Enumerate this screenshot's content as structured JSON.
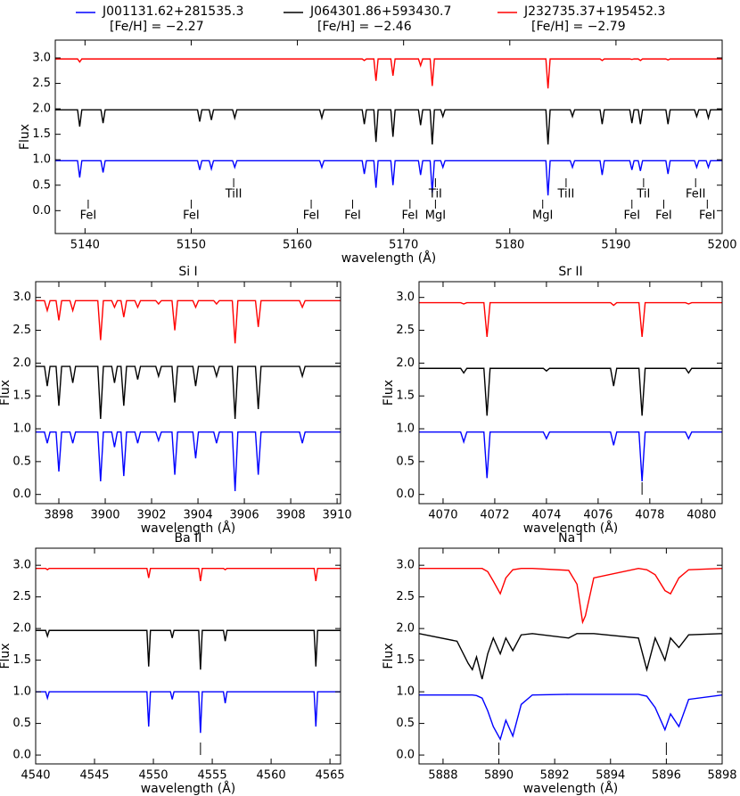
{
  "chart_data": [
    {
      "type": "line",
      "xlabel": "wavelength (Å)",
      "ylabel": "Flux",
      "legend": true,
      "xlim": [
        5137.2,
        5200
      ],
      "ylim": [
        -0.45,
        3.35
      ],
      "xticks": [
        5140,
        5150,
        5160,
        5170,
        5180,
        5190,
        5200
      ],
      "yticks": [
        {
          "value": 0,
          "label": "0.0"
        },
        0.5,
        {
          "value": 1,
          "label": "1.0"
        },
        1.5,
        {
          "value": 2,
          "label": "2.0"
        },
        2.5,
        {
          "value": 3,
          "label": "3.0"
        }
      ],
      "x": [
        5137.2,
        5139.3,
        5139.5,
        5139.7,
        5141.5,
        5141.7,
        5141.9,
        5150.6,
        5150.8,
        5151.0,
        5151.7,
        5151.9,
        5152.1,
        5153.9,
        5154.1,
        5154.3,
        5162.1,
        5162.3,
        5162.5,
        5166.1,
        5166.3,
        5166.5,
        5167.2,
        5167.4,
        5167.6,
        5168.8,
        5169.0,
        5169.2,
        5171.4,
        5171.6,
        5171.8,
        5172.5,
        5172.7,
        5172.9,
        5173.5,
        5173.7,
        5173.9,
        5183.4,
        5183.6,
        5183.8,
        5185.7,
        5185.9,
        5186.1,
        5188.5,
        5188.7,
        5188.9,
        5191.3,
        5191.5,
        5191.7,
        5192.1,
        5192.3,
        5192.5,
        5194.7,
        5194.9,
        5195.1,
        5197.4,
        5197.6,
        5197.8,
        5198.5,
        5198.7,
        5198.9,
        5200
      ],
      "series": [
        {
          "name": "J001131.62+281535.3",
          "feh": "[Fe/H] = −2.27",
          "color": "#0000ff",
          "values": [
            0.98,
            0.98,
            0.65,
            0.98,
            0.98,
            0.75,
            0.98,
            0.98,
            0.8,
            0.98,
            0.98,
            0.82,
            0.98,
            0.98,
            0.85,
            0.98,
            0.98,
            0.85,
            0.98,
            0.98,
            0.72,
            0.98,
            0.98,
            0.45,
            0.98,
            0.98,
            0.5,
            0.98,
            0.98,
            0.7,
            0.98,
            0.98,
            0.35,
            0.98,
            0.98,
            0.85,
            0.98,
            0.98,
            0.3,
            0.98,
            0.98,
            0.85,
            0.98,
            0.98,
            0.7,
            0.98,
            0.98,
            0.8,
            0.98,
            0.98,
            0.78,
            0.98,
            0.98,
            0.72,
            0.98,
            0.98,
            0.85,
            0.98,
            0.98,
            0.85,
            0.98,
            0.98
          ]
        },
        {
          "name": "J064301.86+593430.7",
          "feh": "[Fe/H] = −2.46",
          "color": "#000000",
          "values": [
            1.98,
            1.98,
            1.65,
            1.98,
            1.98,
            1.72,
            1.98,
            1.98,
            1.75,
            1.98,
            1.98,
            1.78,
            1.98,
            1.98,
            1.82,
            1.98,
            1.98,
            1.82,
            1.98,
            1.98,
            1.7,
            1.98,
            1.98,
            1.35,
            1.98,
            1.98,
            1.45,
            1.98,
            1.98,
            1.68,
            1.98,
            1.98,
            1.3,
            1.98,
            1.98,
            1.85,
            1.98,
            1.98,
            1.3,
            1.98,
            1.98,
            1.85,
            1.98,
            1.98,
            1.7,
            1.98,
            1.98,
            1.72,
            1.98,
            1.98,
            1.7,
            1.98,
            1.98,
            1.7,
            1.98,
            1.98,
            1.85,
            1.98,
            1.98,
            1.82,
            1.98,
            1.98
          ]
        },
        {
          "name": "J232735.37+195452.3",
          "feh": "[Fe/H] = −2.79",
          "color": "#ff0000",
          "values": [
            2.98,
            2.98,
            2.92,
            2.98,
            2.98,
            2.98,
            2.98,
            2.98,
            2.98,
            2.98,
            2.98,
            2.98,
            2.98,
            2.98,
            2.98,
            2.98,
            2.98,
            2.98,
            2.98,
            2.98,
            2.95,
            2.98,
            2.98,
            2.55,
            2.98,
            2.98,
            2.65,
            2.98,
            2.98,
            2.85,
            2.98,
            2.98,
            2.45,
            2.98,
            2.98,
            2.98,
            2.98,
            2.98,
            2.4,
            2.98,
            2.98,
            2.98,
            2.98,
            2.98,
            2.95,
            2.98,
            2.98,
            2.97,
            2.98,
            2.98,
            2.95,
            2.98,
            2.98,
            2.96,
            2.98,
            2.98,
            2.98,
            2.98,
            2.98,
            2.98,
            2.98,
            2.98
          ]
        }
      ],
      "annotations": [
        {
          "text": "FeI",
          "x": 5140.3
        },
        {
          "text": "FeI",
          "x": 5150.0
        },
        {
          "text": "TiII",
          "x": 5154.0
        },
        {
          "text": "FeI",
          "x": 5161.3
        },
        {
          "text": "FeI",
          "x": 5165.2
        },
        {
          "text": "FeI",
          "x": 5170.6
        },
        {
          "text": "MgI",
          "x": 5173.0
        },
        {
          "text": "TiI",
          "x": 5173.0
        },
        {
          "text": "MgI",
          "x": 5183.1
        },
        {
          "text": "TiII",
          "x": 5185.3
        },
        {
          "text": "FeI",
          "x": 5191.5
        },
        {
          "text": "TiI",
          "x": 5192.6
        },
        {
          "text": "FeI",
          "x": 5194.5
        },
        {
          "text": "FeII",
          "x": 5197.5
        },
        {
          "text": "FeI",
          "x": 5198.6
        }
      ]
    },
    {
      "type": "line",
      "title": "Si I",
      "xlabel": "wavelength (Å)",
      "ylabel": "Flux",
      "xlim": [
        3897,
        3910.15
      ],
      "ylim": [
        -0.14,
        3.24
      ],
      "xticks": [
        3898,
        3900,
        3902,
        3904,
        3906,
        3908,
        3910
      ],
      "yticks": [
        {
          "value": 0,
          "label": "0.0"
        },
        0.5,
        {
          "value": 1,
          "label": "1.0"
        },
        1.5,
        {
          "value": 2,
          "label": "2.0"
        },
        2.5,
        {
          "value": 3,
          "label": "3.0"
        }
      ],
      "x": [
        3897.0,
        3897.38,
        3897.5,
        3897.62,
        3897.88,
        3898.0,
        3898.12,
        3898.48,
        3898.6,
        3898.72,
        3899.68,
        3899.8,
        3899.92,
        3900.28,
        3900.4,
        3900.52,
        3900.68,
        3900.8,
        3900.92,
        3901.28,
        3901.4,
        3901.52,
        3902.18,
        3902.3,
        3902.42,
        3902.88,
        3903.0,
        3903.12,
        3903.78,
        3903.9,
        3904.02,
        3904.68,
        3904.8,
        3904.92,
        3905.48,
        3905.6,
        3905.72,
        3906.48,
        3906.6,
        3906.72,
        3908.38,
        3908.5,
        3908.62,
        3910.15
      ],
      "series": [
        {
          "name": "J001131.62+281535.3",
          "color": "#0000ff",
          "values": [
            0.95,
            0.95,
            0.78,
            0.95,
            0.95,
            0.35,
            0.95,
            0.95,
            0.78,
            0.95,
            0.95,
            0.2,
            0.95,
            0.95,
            0.72,
            0.95,
            0.95,
            0.28,
            0.95,
            0.95,
            0.78,
            0.95,
            0.95,
            0.82,
            0.95,
            0.95,
            0.3,
            0.95,
            0.95,
            0.55,
            0.95,
            0.95,
            0.78,
            0.95,
            0.95,
            0.05,
            0.95,
            0.95,
            0.3,
            0.95,
            0.95,
            0.78,
            0.95,
            0.95
          ]
        },
        {
          "name": "J064301.86+593430.7",
          "color": "#000000",
          "values": [
            1.95,
            1.95,
            1.65,
            1.95,
            1.95,
            1.35,
            1.95,
            1.95,
            1.7,
            1.95,
            1.95,
            1.15,
            1.95,
            1.95,
            1.7,
            1.95,
            1.95,
            1.35,
            1.95,
            1.95,
            1.75,
            1.95,
            1.95,
            1.8,
            1.95,
            1.95,
            1.4,
            1.95,
            1.95,
            1.65,
            1.95,
            1.95,
            1.8,
            1.95,
            1.95,
            1.15,
            1.95,
            1.95,
            1.3,
            1.95,
            1.95,
            1.8,
            1.95,
            1.95
          ]
        },
        {
          "name": "J232735.37+195452.3",
          "color": "#ff0000",
          "values": [
            2.95,
            2.95,
            2.8,
            2.95,
            2.95,
            2.65,
            2.95,
            2.95,
            2.8,
            2.95,
            2.95,
            2.35,
            2.95,
            2.95,
            2.85,
            2.95,
            2.95,
            2.7,
            2.95,
            2.95,
            2.85,
            2.95,
            2.95,
            2.9,
            2.95,
            2.95,
            2.5,
            2.95,
            2.95,
            2.85,
            2.95,
            2.95,
            2.9,
            2.95,
            2.95,
            2.3,
            2.95,
            2.95,
            2.55,
            2.95,
            2.95,
            2.85,
            2.95,
            2.95
          ]
        }
      ]
    },
    {
      "type": "line",
      "title": "Sr II",
      "xlabel": "wavelength (Å)",
      "ylabel": "Flux",
      "xlim": [
        4069.07,
        4080.8
      ],
      "ylim": [
        -0.14,
        3.24
      ],
      "xticks": [
        4070,
        4072,
        4074,
        4076,
        4078,
        4080
      ],
      "yticks": [
        {
          "value": 0,
          "label": "0.0"
        },
        0.5,
        {
          "value": 1,
          "label": "1.0"
        },
        1.5,
        {
          "value": 2,
          "label": "2.0"
        },
        2.5,
        {
          "value": 3,
          "label": "3.0"
        }
      ],
      "x": [
        4069.07,
        4070.68,
        4070.8,
        4070.92,
        4071.58,
        4071.7,
        4071.82,
        4073.88,
        4074.0,
        4074.12,
        4076.48,
        4076.6,
        4076.72,
        4077.58,
        4077.7,
        4077.82,
        4079.38,
        4079.5,
        4079.62,
        4080.8
      ],
      "series": [
        {
          "name": "J001131.62+281535.3",
          "color": "#0000ff",
          "values": [
            0.95,
            0.95,
            0.8,
            0.95,
            0.95,
            0.25,
            0.95,
            0.95,
            0.85,
            0.95,
            0.95,
            0.75,
            0.95,
            0.95,
            0.2,
            0.95,
            0.95,
            0.85,
            0.95,
            0.95
          ]
        },
        {
          "name": "J064301.86+593430.7",
          "color": "#000000",
          "values": [
            1.92,
            1.92,
            1.85,
            1.92,
            1.92,
            1.2,
            1.92,
            1.92,
            1.88,
            1.92,
            1.92,
            1.65,
            1.92,
            1.92,
            1.2,
            1.92,
            1.92,
            1.85,
            1.92,
            1.92
          ]
        },
        {
          "name": "J232735.37+195452.3",
          "color": "#ff0000",
          "values": [
            2.92,
            2.92,
            2.9,
            2.92,
            2.92,
            2.4,
            2.92,
            2.92,
            2.92,
            2.92,
            2.92,
            2.88,
            2.92,
            2.92,
            2.4,
            2.92,
            2.92,
            2.9,
            2.92,
            2.92
          ]
        }
      ],
      "markers": [
        4077.7
      ]
    },
    {
      "type": "line",
      "title": "Ba II",
      "xlabel": "wavelength (Å)",
      "ylabel": "Flux",
      "xlim": [
        4540,
        4565.9
      ],
      "ylim": [
        -0.14,
        3.27
      ],
      "xticks": [
        4540,
        4545,
        4550,
        4555,
        4560,
        4565
      ],
      "yticks": [
        {
          "value": 0,
          "label": "0.0"
        },
        0.5,
        {
          "value": 1,
          "label": "1.0"
        },
        1.5,
        {
          "value": 2,
          "label": "2.0"
        },
        2.5,
        {
          "value": 3,
          "label": "3.0"
        }
      ],
      "x": [
        4540,
        4540.85,
        4541.0,
        4541.15,
        4549.45,
        4549.6,
        4549.75,
        4551.45,
        4551.6,
        4551.75,
        4553.85,
        4554.0,
        4554.15,
        4555.95,
        4556.1,
        4556.25,
        4563.65,
        4563.8,
        4563.95,
        4565.9
      ],
      "series": [
        {
          "name": "J001131.62+281535.3",
          "color": "#0000ff",
          "values": [
            1.0,
            1.0,
            0.9,
            1.0,
            1.0,
            0.45,
            1.0,
            1.0,
            0.88,
            1.0,
            1.0,
            0.35,
            1.0,
            1.0,
            0.82,
            1.0,
            1.0,
            0.45,
            1.0,
            1.0
          ]
        },
        {
          "name": "J064301.86+593430.7",
          "color": "#000000",
          "values": [
            1.97,
            1.97,
            1.88,
            1.97,
            1.97,
            1.4,
            1.97,
            1.97,
            1.85,
            1.97,
            1.97,
            1.35,
            1.97,
            1.97,
            1.8,
            1.97,
            1.97,
            1.4,
            1.97,
            1.97
          ]
        },
        {
          "name": "J232735.37+195452.3",
          "color": "#ff0000",
          "values": [
            2.95,
            2.95,
            2.93,
            2.95,
            2.95,
            2.8,
            2.95,
            2.95,
            2.95,
            2.95,
            2.95,
            2.75,
            2.95,
            2.95,
            2.93,
            2.95,
            2.95,
            2.75,
            2.95,
            2.95
          ]
        }
      ],
      "markers": [
        4554.0
      ]
    },
    {
      "type": "line",
      "title": "Na I",
      "xlabel": "wavelength (Å)",
      "ylabel": "Flux",
      "xlim": [
        5887.14,
        5898
      ],
      "ylim": [
        -0.14,
        3.27
      ],
      "xticks": [
        5888,
        5890,
        5892,
        5894,
        5896,
        5898
      ],
      "yticks": [
        {
          "value": 0,
          "label": "0.0"
        },
        0.5,
        {
          "value": 1,
          "label": "1.0"
        },
        1.5,
        {
          "value": 2,
          "label": "2.0"
        },
        2.5,
        {
          "value": 3,
          "label": "3.0"
        }
      ],
      "x": [
        5887.14,
        5888.5,
        5888.9,
        5889.05,
        5889.2,
        5889.4,
        5889.6,
        5889.8,
        5890.05,
        5890.25,
        5890.5,
        5890.8,
        5891.2,
        5892.5,
        5892.8,
        5893.0,
        5893.1,
        5893.4,
        5895.0,
        5895.3,
        5895.6,
        5895.95,
        5896.15,
        5896.45,
        5896.8,
        5898
      ],
      "series": [
        {
          "name": "J001131.62+281535.3",
          "color": "#0000ff",
          "values": [
            0.95,
            0.95,
            0.95,
            0.95,
            0.94,
            0.9,
            0.7,
            0.45,
            0.25,
            0.55,
            0.3,
            0.8,
            0.95,
            0.96,
            0.96,
            0.96,
            0.96,
            0.96,
            0.96,
            0.93,
            0.75,
            0.4,
            0.65,
            0.45,
            0.88,
            0.95
          ]
        },
        {
          "name": "J064301.86+593430.7",
          "color": "#000000",
          "values": [
            1.92,
            1.8,
            1.45,
            1.35,
            1.55,
            1.2,
            1.6,
            1.85,
            1.6,
            1.85,
            1.65,
            1.9,
            1.92,
            1.85,
            1.92,
            1.92,
            1.92,
            1.92,
            1.85,
            1.35,
            1.85,
            1.5,
            1.85,
            1.7,
            1.9,
            1.92
          ]
        },
        {
          "name": "J232735.37+195452.3",
          "color": "#ff0000",
          "values": [
            2.95,
            2.95,
            2.95,
            2.95,
            2.95,
            2.95,
            2.9,
            2.75,
            2.55,
            2.8,
            2.93,
            2.95,
            2.95,
            2.92,
            2.7,
            2.1,
            2.2,
            2.8,
            2.95,
            2.93,
            2.85,
            2.6,
            2.55,
            2.8,
            2.93,
            2.95
          ]
        }
      ],
      "markers": [
        5890.0,
        5896.0
      ]
    }
  ]
}
